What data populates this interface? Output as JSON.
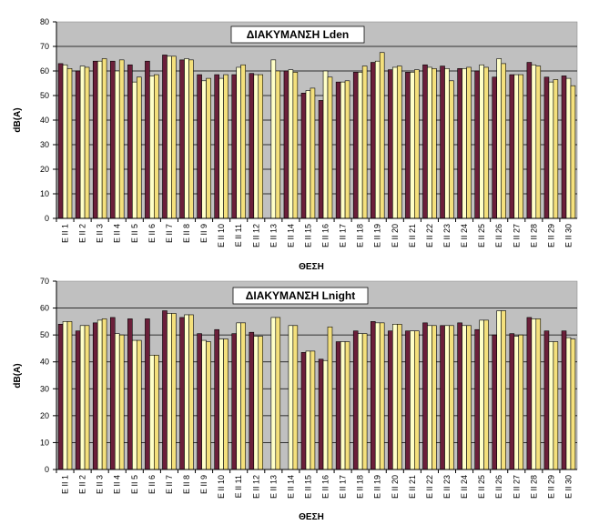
{
  "colors": {
    "plot_bg": "#c0c0c0",
    "series": [
      "#6b1f3a",
      "#ffffc8",
      "#f4e07c"
    ]
  },
  "chart_data": [
    {
      "type": "bar",
      "title": "ΔΙΑΚΥΜΑΝΣΗ Lden",
      "xlabel": "ΘΕΣΗ",
      "ylabel": "dB(A)",
      "ylim": [
        0,
        80
      ],
      "yticks": [
        "0",
        "10",
        "20",
        "30",
        "40",
        "50",
        "60",
        "70",
        "80"
      ],
      "grid": true,
      "legend": "none",
      "categories": [
        "E II 1",
        "E II 2",
        "E II 3",
        "E II 4",
        "E II 5",
        "E II 6",
        "E II 7",
        "E II 8",
        "E II 9",
        "E II 10",
        "E II 11",
        "E II 12",
        "E II 13",
        "E II 14",
        "E II 15",
        "E II 16",
        "E II 17",
        "E II 18",
        "E II 19",
        "E II 20",
        "E II 21",
        "E II 22",
        "E II 23",
        "E II 24",
        "E II 25",
        "E II 26",
        "E II 27",
        "E II 28",
        "E II 29",
        "E II 30"
      ],
      "series": [
        {
          "values": [
            63,
            60,
            64,
            64,
            62.5,
            64,
            66.5,
            64.5,
            58.5,
            58.5,
            58.5,
            59,
            0,
            60,
            51,
            48,
            55.5,
            59.5,
            63.5,
            60.5,
            59.5,
            62.5,
            62,
            61,
            60,
            57.5,
            58.5,
            63.5,
            57.5,
            58
          ]
        },
        {
          "values": [
            62.5,
            62,
            64,
            60,
            55.5,
            58,
            66,
            65,
            56,
            57,
            61.5,
            58.5,
            64.5,
            60.5,
            52,
            60,
            55.5,
            59.5,
            64,
            61.5,
            59.5,
            61.5,
            61,
            61,
            62.5,
            65,
            58.5,
            62.5,
            55.5,
            57
          ]
        },
        {
          "values": [
            61,
            61.5,
            65,
            64.5,
            57.5,
            58.5,
            66,
            64.5,
            57,
            58.5,
            62.5,
            58.5,
            60,
            59.5,
            53,
            57.5,
            56,
            62,
            67.5,
            62,
            60.5,
            61,
            56,
            61.5,
            61.5,
            63,
            58.5,
            62,
            56.5,
            54
          ]
        }
      ]
    },
    {
      "type": "bar",
      "title": "ΔΙΑΚΥΜΑΝΣΗ Lnight",
      "xlabel": "ΘΕΣΗ",
      "ylabel": "dB(A)",
      "ylim": [
        0,
        70
      ],
      "yticks": [
        "0",
        "10",
        "20",
        "30",
        "40",
        "50",
        "60",
        "70"
      ],
      "grid": true,
      "legend": "none",
      "categories": [
        "E II 1",
        "E II 2",
        "E II 3",
        "E II 4",
        "E II 5",
        "E II 6",
        "E II 7",
        "E II 8",
        "E II 9",
        "E II 10",
        "E II 11",
        "E II 12",
        "E II 13",
        "E II 14",
        "E II 15",
        "E II 16",
        "E II 17",
        "E II 18",
        "E II 19",
        "E II 20",
        "E II 21",
        "E II 22",
        "E II 23",
        "E II 24",
        "E II 25",
        "E II 26",
        "E II 27",
        "E II 28",
        "E II 29",
        "E II 30"
      ],
      "series": [
        {
          "values": [
            54,
            51.5,
            54.5,
            56.5,
            56,
            56,
            59,
            56.5,
            50.5,
            52,
            50.5,
            51,
            0,
            0,
            43.5,
            41,
            47.5,
            51.5,
            55,
            51.5,
            51.5,
            54.5,
            53.5,
            54.5,
            52,
            50,
            50.5,
            56.5,
            51.5,
            51.5
          ]
        },
        {
          "values": [
            55,
            53.5,
            55.5,
            50.5,
            48,
            42.5,
            58,
            57.5,
            48,
            48.5,
            54.5,
            49.5,
            56.5,
            53.5,
            44,
            40.5,
            47.5,
            50.5,
            54.5,
            54,
            51.5,
            53.5,
            53.5,
            53.5,
            55.5,
            59,
            49.5,
            56,
            47.5,
            49
          ]
        },
        {
          "values": [
            55,
            53.5,
            56,
            50,
            48,
            42.5,
            58,
            57.5,
            47.5,
            48.5,
            54.5,
            49.5,
            56.5,
            53.5,
            44,
            53,
            47.5,
            50.5,
            54.5,
            54,
            51.5,
            53.5,
            53.5,
            53.5,
            55.5,
            59,
            50,
            56,
            47.5,
            48.5
          ]
        }
      ]
    }
  ]
}
